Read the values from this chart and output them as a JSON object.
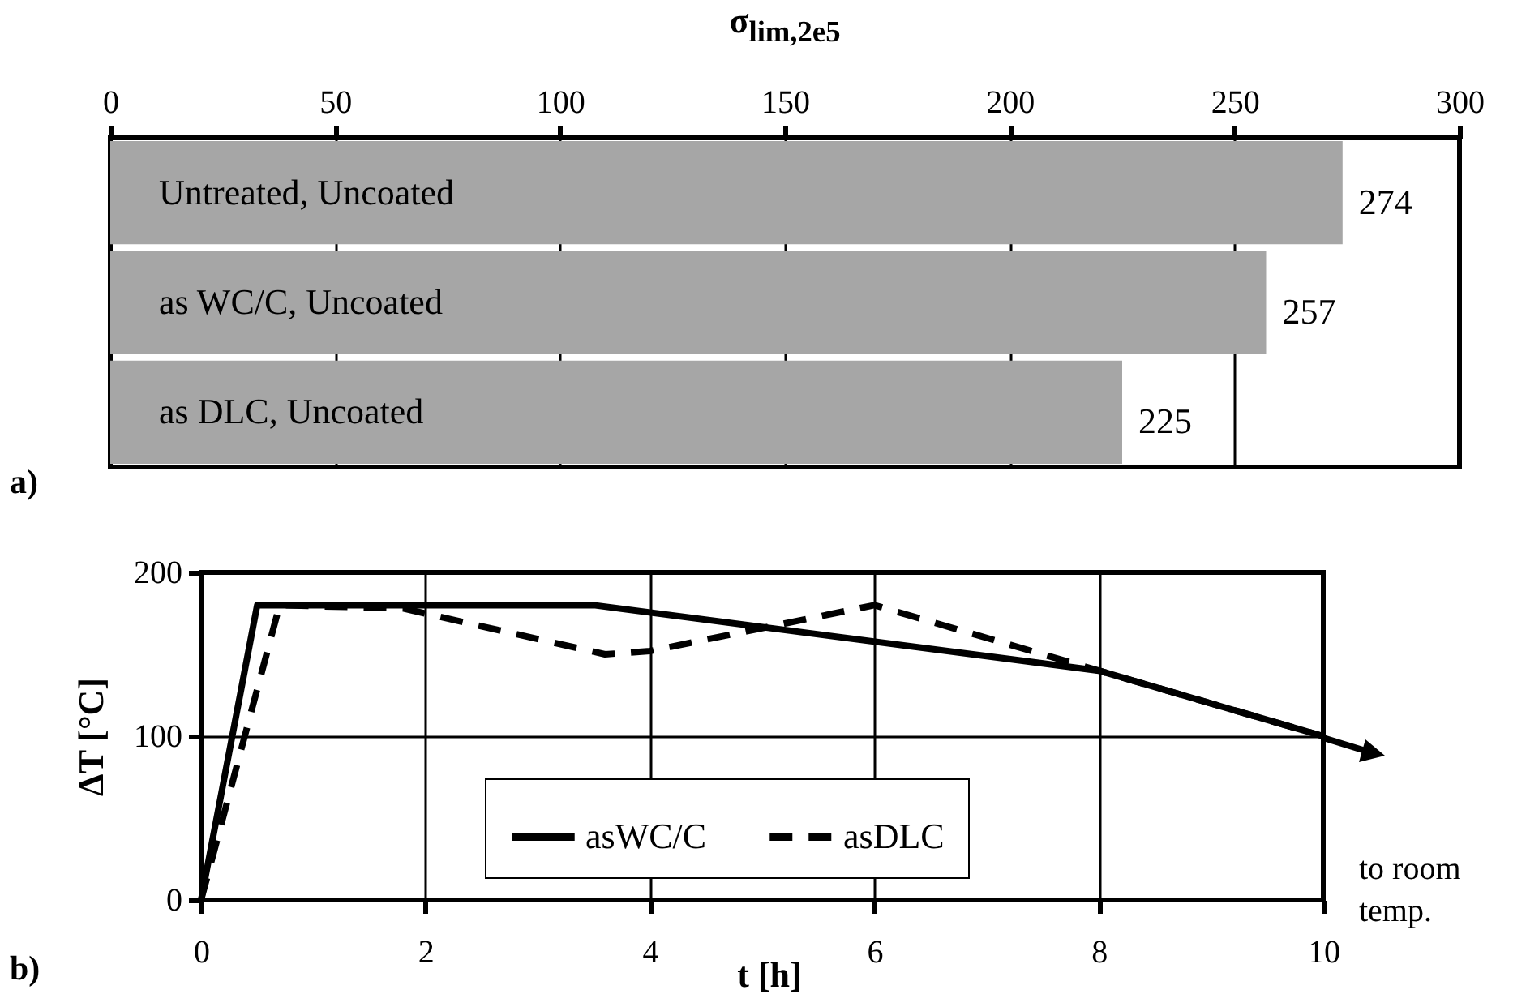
{
  "chart_data": [
    {
      "type": "bar",
      "orientation": "horizontal",
      "xlabel": "σ$_{lim,2e5}$",
      "categories": [
        "Untreated, Uncoated",
        "as WC/C, Uncoated",
        "as DLC, Uncoated"
      ],
      "series": [
        {
          "color": "#a6a6a6",
          "values": [
            274,
            257,
            225
          ]
        }
      ],
      "xlim": [
        0,
        300
      ],
      "xticks": [
        0,
        50,
        100,
        150,
        200,
        250,
        300
      ],
      "grid": "x",
      "data_labels": true,
      "annotations": [
        "a)"
      ]
    },
    {
      "type": "line",
      "xlabel": "t [h]",
      "ylabel": "ΔT  [°C]",
      "xlim": [
        0,
        10
      ],
      "ylim": [
        0,
        200
      ],
      "xticks": [
        0,
        2,
        4,
        6,
        8,
        10
      ],
      "yticks": [
        0,
        100,
        200
      ],
      "grid": true,
      "legend": "bottom",
      "series": [
        {
          "name": "asWC/C",
          "color": "#000000",
          "line_style": "solid",
          "x": [
            0,
            0.5,
            3.5,
            8,
            10
          ],
          "values": [
            0,
            180,
            180,
            140,
            100
          ]
        },
        {
          "name": "asDLC",
          "color": "#000000",
          "line_style": "dashed",
          "x": [
            0,
            0.7,
            1.8,
            3.6,
            4,
            6,
            8,
            10
          ],
          "values": [
            0,
            180,
            178,
            150,
            152,
            180,
            140,
            100
          ]
        }
      ],
      "annotations": [
        "b)",
        "to room temp."
      ]
    }
  ]
}
